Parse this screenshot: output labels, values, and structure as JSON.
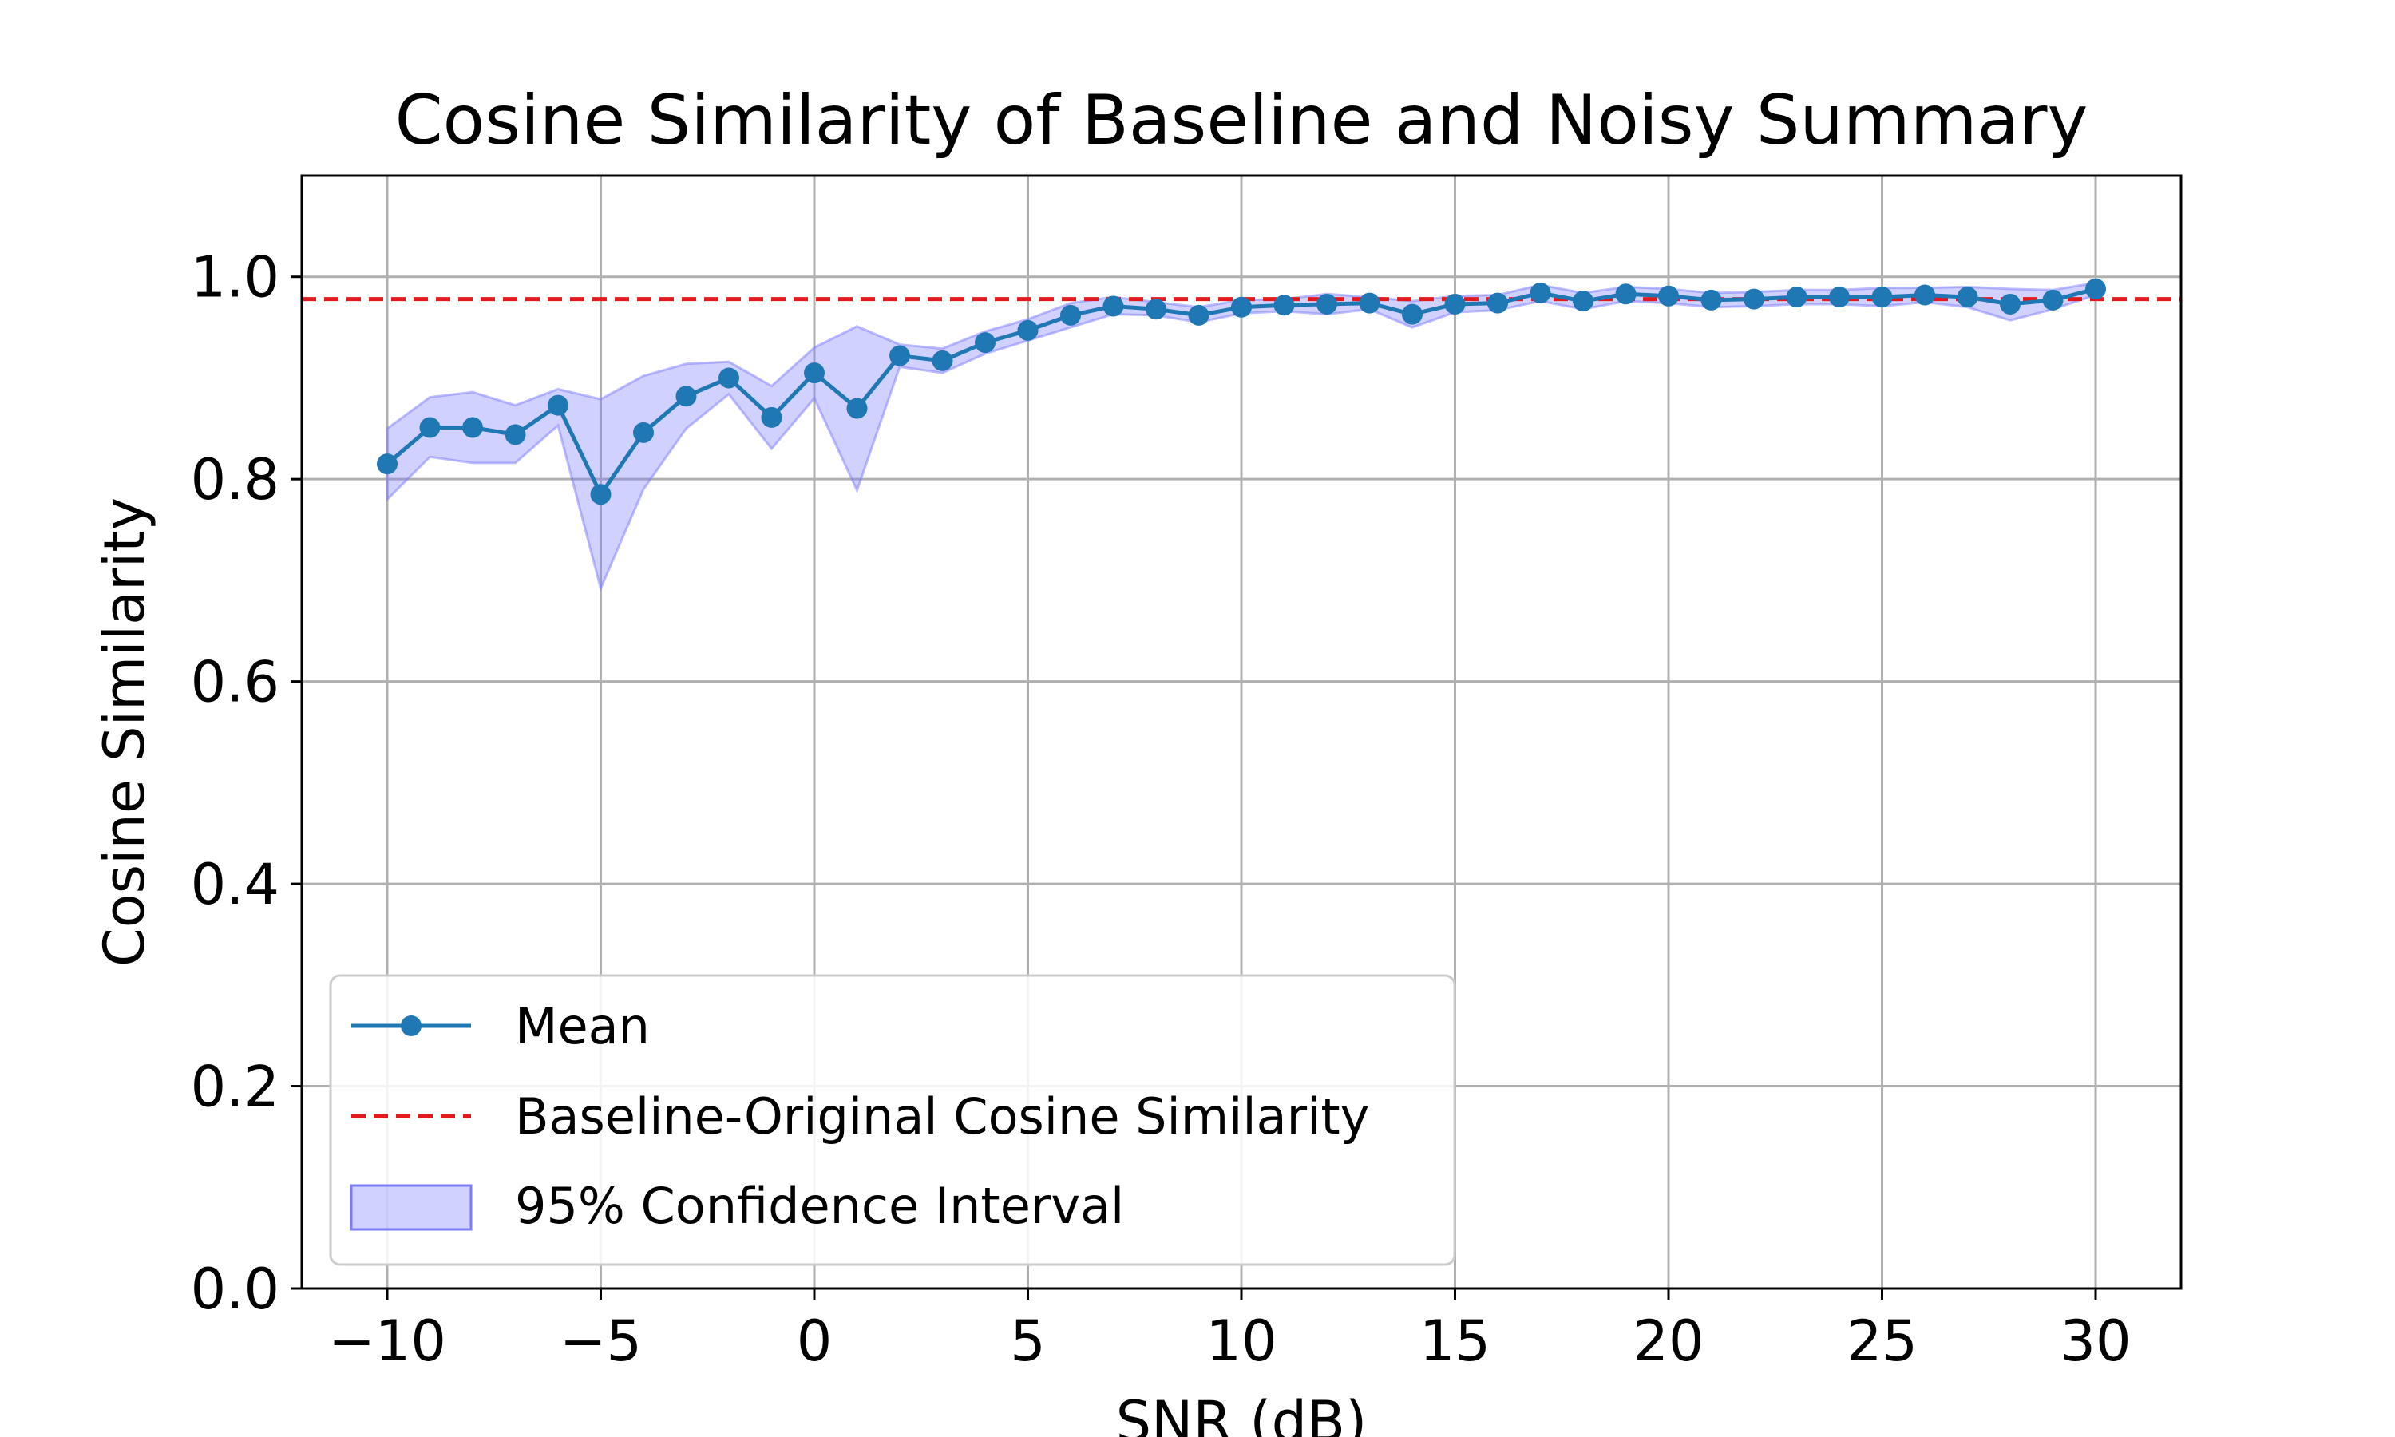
{
  "chart_data": {
    "type": "line",
    "title": "Cosine Similarity of Baseline and Noisy Summary",
    "xlabel": "SNR (dB)",
    "ylabel": "Cosine Similarity",
    "xlim": [
      -12,
      32
    ],
    "ylim": [
      0.0,
      1.1
    ],
    "xticks": [
      -10,
      -5,
      0,
      5,
      10,
      15,
      20,
      25,
      30
    ],
    "xtick_labels": [
      "−10",
      "−5",
      "0",
      "5",
      "10",
      "15",
      "20",
      "25",
      "30"
    ],
    "yticks": [
      0.0,
      0.2,
      0.4,
      0.6,
      0.8,
      1.0
    ],
    "ytick_labels": [
      "0.0",
      "0.2",
      "0.4",
      "0.6",
      "0.8",
      "1.0"
    ],
    "grid": true,
    "legend_position": "lower-left",
    "x": [
      -10,
      -9,
      -8,
      -7,
      -6,
      -5,
      -4,
      -3,
      -2,
      -1,
      0,
      1,
      2,
      3,
      4,
      5,
      6,
      7,
      8,
      9,
      10,
      11,
      12,
      13,
      14,
      15,
      16,
      17,
      18,
      19,
      20,
      21,
      22,
      23,
      24,
      25,
      26,
      27,
      28,
      29,
      30
    ],
    "series": [
      {
        "name": "Mean",
        "color": "#1f77b4",
        "values": [
          0.815,
          0.851,
          0.851,
          0.844,
          0.873,
          0.785,
          0.846,
          0.882,
          0.9,
          0.861,
          0.905,
          0.87,
          0.922,
          0.917,
          0.935,
          0.947,
          0.962,
          0.971,
          0.968,
          0.962,
          0.97,
          0.972,
          0.973,
          0.974,
          0.963,
          0.973,
          0.974,
          0.984,
          0.976,
          0.983,
          0.981,
          0.977,
          0.978,
          0.98,
          0.98,
          0.98,
          0.982,
          0.98,
          0.973,
          0.977,
          0.988
        ],
        "ci_lower": [
          0.78,
          0.822,
          0.816,
          0.816,
          0.853,
          0.692,
          0.79,
          0.85,
          0.884,
          0.83,
          0.88,
          0.789,
          0.911,
          0.905,
          0.924,
          0.937,
          0.95,
          0.963,
          0.962,
          0.955,
          0.964,
          0.966,
          0.963,
          0.968,
          0.95,
          0.965,
          0.967,
          0.976,
          0.968,
          0.976,
          0.974,
          0.97,
          0.971,
          0.973,
          0.973,
          0.971,
          0.975,
          0.97,
          0.957,
          0.968,
          0.982
        ],
        "ci_upper": [
          0.85,
          0.881,
          0.886,
          0.873,
          0.889,
          0.879,
          0.902,
          0.914,
          0.916,
          0.892,
          0.93,
          0.951,
          0.933,
          0.929,
          0.946,
          0.958,
          0.974,
          0.98,
          0.975,
          0.97,
          0.977,
          0.978,
          0.983,
          0.98,
          0.976,
          0.981,
          0.982,
          0.992,
          0.984,
          0.99,
          0.988,
          0.984,
          0.985,
          0.987,
          0.987,
          0.989,
          0.989,
          0.99,
          0.988,
          0.987,
          0.994
        ]
      }
    ],
    "reference_line": {
      "name": "Baseline-Original Cosine Similarity",
      "y": 0.978,
      "color": "#e31a1c",
      "style": "dashed"
    },
    "band": {
      "name": "95% Confidence Interval",
      "color": "#7b7bff"
    }
  }
}
